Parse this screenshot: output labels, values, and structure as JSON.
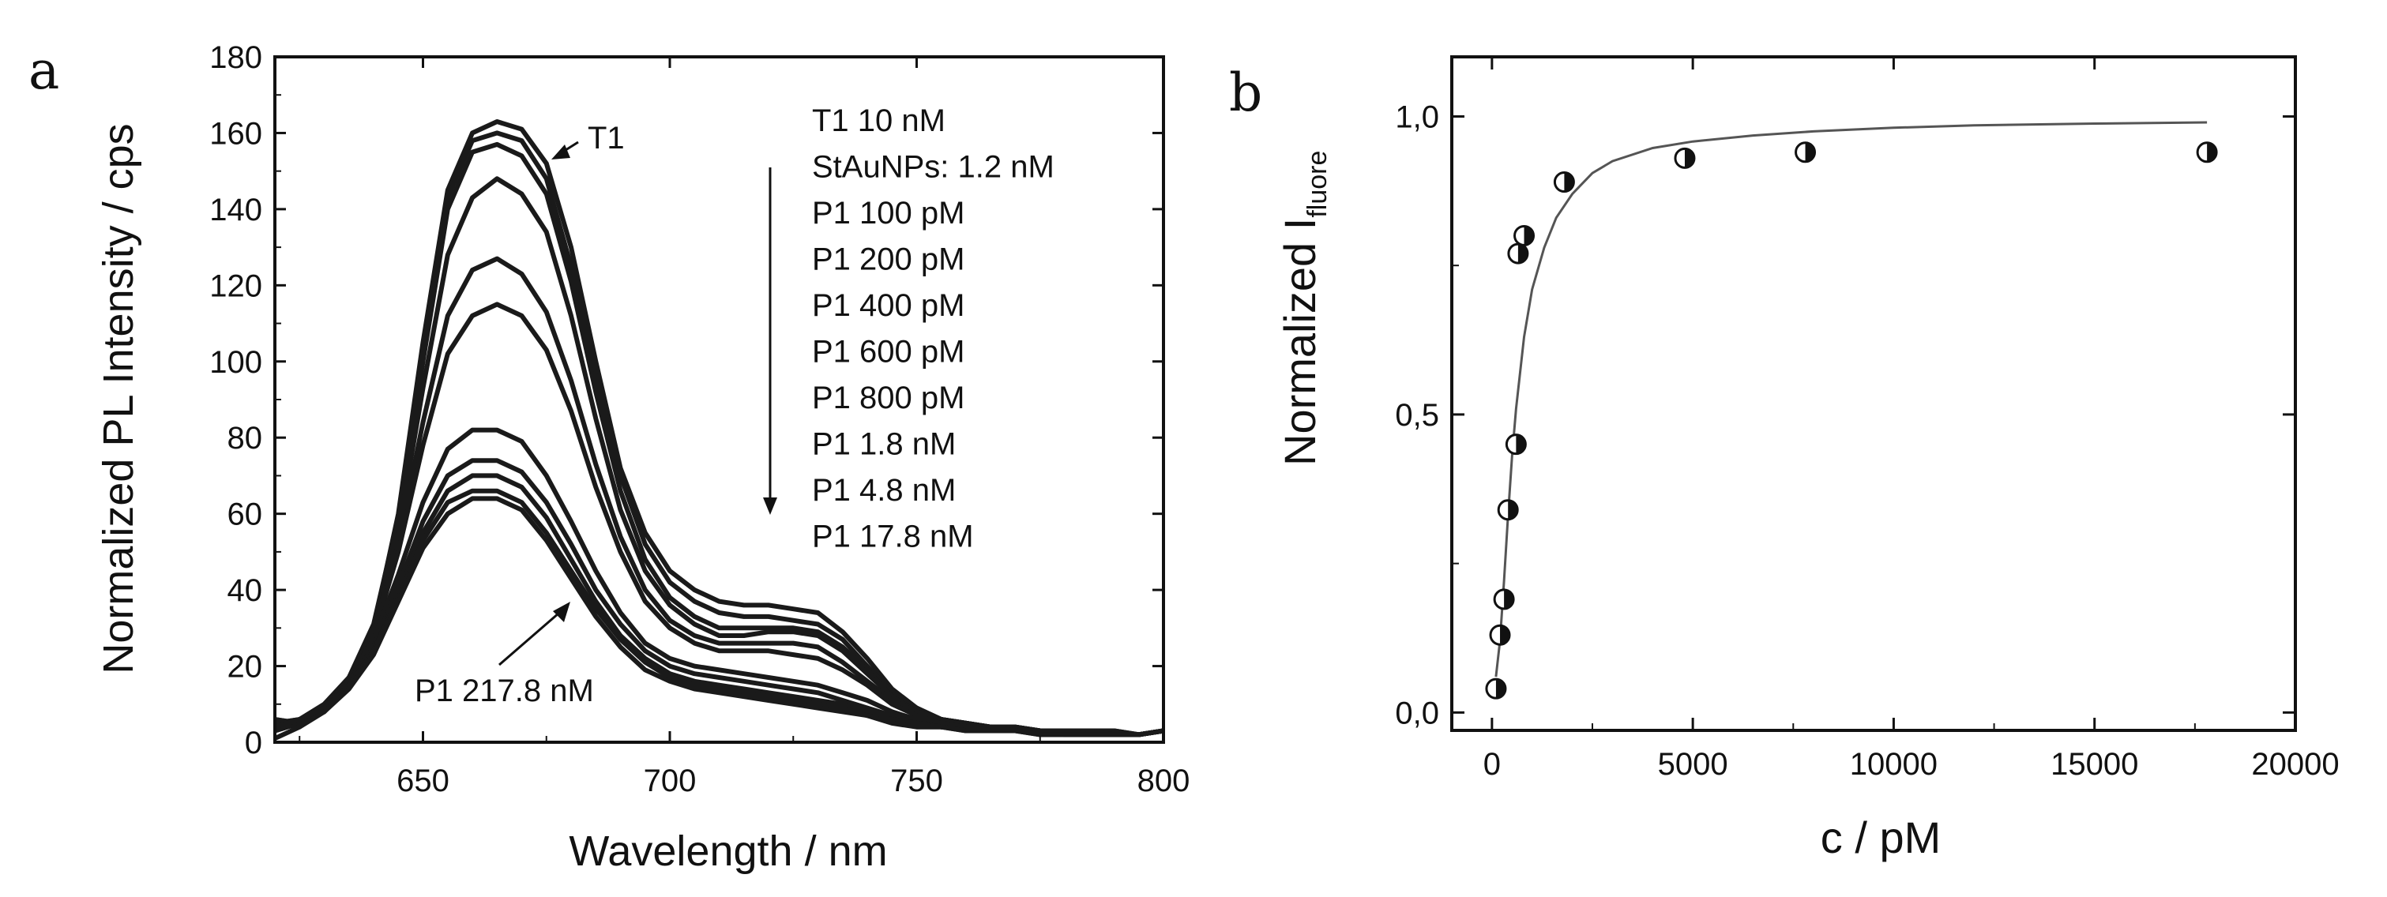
{
  "chart_data": [
    {
      "panel": "a",
      "type": "line",
      "xlabel": "Wavelength / nm",
      "ylabel": "Normalized PL Intensity / cps",
      "xlim": [
        620,
        800
      ],
      "ylim": [
        0,
        180
      ],
      "xticks": [
        650,
        700,
        750,
        800
      ],
      "yticks": [
        0,
        20,
        40,
        60,
        80,
        100,
        120,
        140,
        160,
        180
      ],
      "legend": [
        "T1  10 nM",
        "StAuNPs: 1.2 nM",
        "P1 100 pM",
        "P1 200 pM",
        "P1 400 pM",
        "P1 600 pM",
        "P1 800 pM",
        "P1 1.8 nM",
        "P1 4.8 nM",
        "P1 17.8 nM"
      ],
      "annotations": {
        "top": "T1",
        "bottom": "P1 217.8 nM"
      },
      "x": [
        620,
        625,
        630,
        635,
        640,
        645,
        650,
        655,
        660,
        665,
        670,
        675,
        680,
        685,
        690,
        695,
        700,
        705,
        710,
        715,
        720,
        725,
        730,
        735,
        740,
        745,
        750,
        755,
        760,
        765,
        770,
        775,
        780,
        785,
        790,
        795,
        800
      ],
      "series": [
        {
          "name": "T1",
          "values": [
            4,
            6,
            8,
            16,
            30,
            60,
            105,
            145,
            160,
            163,
            161,
            152,
            130,
            100,
            72,
            55,
            45,
            40,
            37,
            36,
            36,
            35,
            34,
            29,
            22,
            14,
            9,
            6,
            5,
            4,
            4,
            3,
            3,
            3,
            2,
            2,
            3
          ]
        },
        {
          "name": "StAuNPs",
          "values": [
            5,
            6,
            9,
            17,
            31,
            59,
            103,
            143,
            158,
            160,
            158,
            148,
            125,
            96,
            70,
            52,
            42,
            37,
            34,
            33,
            33,
            32,
            31,
            27,
            20,
            13,
            9,
            6,
            5,
            4,
            4,
            3,
            3,
            3,
            3,
            2,
            3
          ]
        },
        {
          "name": "P1 100 pM",
          "values": [
            3,
            5,
            9,
            16,
            30,
            58,
            100,
            140,
            155,
            157,
            154,
            144,
            121,
            92,
            66,
            48,
            38,
            33,
            30,
            30,
            30,
            30,
            29,
            25,
            19,
            12,
            8,
            6,
            5,
            4,
            3,
            3,
            3,
            2,
            2,
            2,
            3
          ]
        },
        {
          "name": "P1 200 pM",
          "values": [
            6,
            5,
            8,
            15,
            28,
            55,
            93,
            128,
            143,
            148,
            144,
            134,
            112,
            85,
            61,
            45,
            36,
            31,
            28,
            28,
            29,
            29,
            28,
            24,
            18,
            12,
            8,
            6,
            5,
            4,
            4,
            3,
            3,
            3,
            3,
            2,
            3
          ]
        },
        {
          "name": "P1 400 pM",
          "values": [
            4,
            6,
            10,
            17,
            29,
            52,
            84,
            112,
            124,
            127,
            123,
            113,
            95,
            73,
            54,
            40,
            32,
            28,
            26,
            26,
            26,
            26,
            25,
            21,
            16,
            11,
            8,
            6,
            5,
            4,
            4,
            3,
            3,
            3,
            2,
            2,
            3
          ]
        },
        {
          "name": "P1 600 pM",
          "values": [
            3,
            5,
            9,
            16,
            28,
            50,
            78,
            102,
            112,
            115,
            112,
            103,
            87,
            67,
            50,
            37,
            30,
            26,
            24,
            24,
            24,
            23,
            22,
            19,
            15,
            10,
            7,
            5,
            4,
            4,
            3,
            3,
            3,
            2,
            2,
            2,
            3
          ]
        },
        {
          "name": "P1 800 pM",
          "values": [
            5,
            6,
            10,
            17,
            27,
            44,
            63,
            77,
            82,
            82,
            79,
            70,
            58,
            45,
            34,
            26,
            22,
            20,
            19,
            18,
            17,
            16,
            15,
            13,
            11,
            8,
            6,
            5,
            4,
            4,
            3,
            3,
            3,
            3,
            2,
            2,
            3
          ]
        },
        {
          "name": "P1 1.8 nM",
          "values": [
            3,
            5,
            9,
            16,
            25,
            41,
            58,
            70,
            74,
            74,
            71,
            63,
            52,
            40,
            31,
            24,
            20,
            18,
            17,
            16,
            15,
            14,
            13,
            11,
            9,
            7,
            5,
            4,
            4,
            3,
            3,
            3,
            2,
            2,
            2,
            2,
            3
          ]
        },
        {
          "name": "P1 4.8 nM",
          "values": [
            6,
            5,
            9,
            15,
            24,
            39,
            55,
            66,
            70,
            70,
            67,
            59,
            48,
            37,
            28,
            22,
            18,
            16,
            15,
            14,
            13,
            12,
            11,
            10,
            8,
            6,
            5,
            4,
            4,
            3,
            3,
            3,
            3,
            2,
            2,
            2,
            3
          ]
        },
        {
          "name": "P1 17.8 nM",
          "values": [
            4,
            6,
            9,
            15,
            24,
            38,
            53,
            63,
            66,
            66,
            63,
            55,
            45,
            35,
            27,
            21,
            17,
            15,
            14,
            13,
            12,
            11,
            10,
            9,
            7,
            6,
            5,
            4,
            3,
            3,
            3,
            2,
            2,
            2,
            2,
            2,
            3
          ]
        },
        {
          "name": "P1 217.8 nM",
          "values": [
            1,
            4,
            8,
            14,
            23,
            37,
            51,
            60,
            64,
            64,
            61,
            53,
            43,
            33,
            25,
            19,
            16,
            14,
            13,
            12,
            11,
            10,
            9,
            8,
            7,
            5,
            4,
            4,
            3,
            3,
            3,
            2,
            2,
            2,
            2,
            2,
            3
          ]
        }
      ]
    },
    {
      "panel": "b",
      "type": "scatter",
      "xlabel": "c / pM",
      "ylabel": "Normalized I",
      "ylabel_sub": "fluore",
      "xlim": [
        -1000,
        20000
      ],
      "ylim": [
        -0.03,
        1.1
      ],
      "xticks": [
        0,
        5000,
        10000,
        15000,
        20000
      ],
      "yticks": [
        0.0,
        0.5,
        1.0
      ],
      "ytick_labels": [
        "0,0",
        "0,5",
        "1,0"
      ],
      "points": [
        {
          "x": 100,
          "y": 0.04
        },
        {
          "x": 200,
          "y": 0.13
        },
        {
          "x": 300,
          "y": 0.19
        },
        {
          "x": 400,
          "y": 0.34
        },
        {
          "x": 600,
          "y": 0.45
        },
        {
          "x": 650,
          "y": 0.77
        },
        {
          "x": 800,
          "y": 0.8
        },
        {
          "x": 1800,
          "y": 0.89
        },
        {
          "x": 4800,
          "y": 0.93
        },
        {
          "x": 7800,
          "y": 0.94
        },
        {
          "x": 17800,
          "y": 0.94
        }
      ],
      "fit_curve": {
        "type": "hyperbolic",
        "x": [
          100,
          200,
          300,
          400,
          500,
          600,
          800,
          1000,
          1300,
          1600,
          2000,
          2500,
          3000,
          4000,
          5000,
          6500,
          8000,
          10000,
          12000,
          15000,
          17800
        ],
        "y": [
          0.06,
          0.12,
          0.22,
          0.33,
          0.43,
          0.51,
          0.63,
          0.71,
          0.78,
          0.83,
          0.87,
          0.905,
          0.925,
          0.947,
          0.958,
          0.968,
          0.975,
          0.981,
          0.985,
          0.988,
          0.99
        ]
      }
    }
  ]
}
